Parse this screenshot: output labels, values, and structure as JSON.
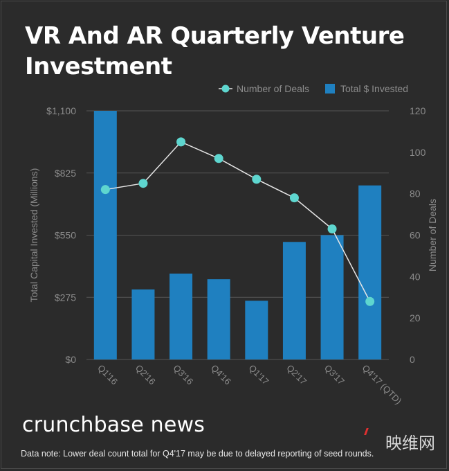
{
  "title": "VR And AR Quarterly Venture Investment",
  "brand": "crunchbase news",
  "watermark": "映维网",
  "note": "Data note: Lower deal count total for Q4'17 may be due to delayed reporting of seed rounds.",
  "colors": {
    "background": "#2b2b2b",
    "bar": "#1f80c0",
    "line": "#e6e6e6",
    "marker": "#5ed6cf",
    "grid": "#555555",
    "axis_text": "#8c8c8c"
  },
  "chart_data": {
    "type": "bar",
    "categories": [
      "Q1'16",
      "Q2'16",
      "Q3'16",
      "Q4'16",
      "Q1'17",
      "Q2'17",
      "Q3'17",
      "Q4'17 (QTD)"
    ],
    "series": [
      {
        "name": "Total $ Invested",
        "type": "bar",
        "axis": "left",
        "values": [
          1100,
          310,
          380,
          355,
          260,
          520,
          550,
          770
        ]
      },
      {
        "name": "Number of Deals",
        "type": "line",
        "axis": "right",
        "values": [
          82,
          85,
          105,
          97,
          87,
          78,
          63,
          28
        ]
      }
    ],
    "ylabel": "Total Capital Invested (Millions)",
    "ylabel_right": "Number of Deals",
    "ylim": [
      0,
      1100
    ],
    "ylim_right": [
      0,
      120
    ],
    "yticks": [
      "$0",
      "$275",
      "$550",
      "$825",
      "$1,100"
    ],
    "yticks_right": [
      "0",
      "20",
      "40",
      "60",
      "80",
      "100",
      "120"
    ],
    "legend_position": "top-right",
    "grid": true
  }
}
